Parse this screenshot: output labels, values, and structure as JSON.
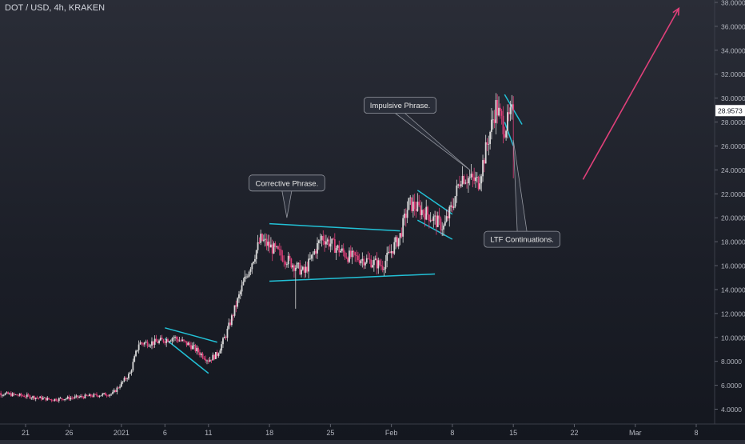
{
  "header": {
    "symbol": "DOT / USD, 4h, KRAKEN"
  },
  "colors": {
    "bull": "#d9d9d9",
    "bear": "#e0407a",
    "trendline": "#22c1d6",
    "arrow": "#e0407a",
    "price_tag_bg": "#ffffff",
    "price_tag_text": "#131722",
    "axis_text": "#b2b5be",
    "callout_bg": "#2a2e39",
    "callout_border": "#9598a1",
    "callout_text": "#e6e6e6"
  },
  "chart_data": {
    "type": "candlestick",
    "title": "DOT / USD, 4h, KRAKEN",
    "y_axis": {
      "ticks": [
        "4.0000",
        "6.0000",
        "8.0000",
        "10.0000",
        "12.0000",
        "14.0000",
        "16.0000",
        "18.0000",
        "20.0000",
        "22.0000",
        "24.0000",
        "26.0000",
        "28.0000",
        "30.0000",
        "32.0000",
        "34.0000",
        "36.0000",
        "38.0000"
      ],
      "ylim": [
        3.0,
        38.2
      ],
      "last_price": "28.9573",
      "last_price_value": 28.9573
    },
    "x_axis": {
      "ticks": [
        "21",
        "26",
        "2021",
        "6",
        "11",
        "18",
        "25",
        "Feb",
        "8",
        "15",
        "22",
        "Mar",
        "8"
      ],
      "tick_dates": [
        "2020-12-21",
        "2020-12-26",
        "2021-01-01",
        "2021-01-06",
        "2021-01-11",
        "2021-01-18",
        "2021-01-25",
        "2021-02-01",
        "2021-02-08",
        "2021-02-15",
        "2021-02-22",
        "2021-03-01",
        "2021-03-08"
      ]
    },
    "price_path": [
      [
        "2020-12-17",
        5.4
      ],
      [
        "2020-12-21",
        5.1
      ],
      [
        "2020-12-24",
        4.8
      ],
      [
        "2020-12-27",
        5.0
      ],
      [
        "2020-12-31",
        5.3
      ],
      [
        "2021-01-02",
        7.0
      ],
      [
        "2021-01-03",
        9.5
      ],
      [
        "2021-01-05",
        9.6
      ],
      [
        "2021-01-07",
        10.0
      ],
      [
        "2021-01-09",
        9.3
      ],
      [
        "2021-01-11",
        8.1
      ],
      [
        "2021-01-12",
        8.6
      ],
      [
        "2021-01-13",
        10.2
      ],
      [
        "2021-01-15",
        14.5
      ],
      [
        "2021-01-17",
        18.2
      ],
      [
        "2021-01-20",
        16.5
      ],
      [
        "2021-01-22",
        15.4
      ],
      [
        "2021-01-24",
        18.4
      ],
      [
        "2021-01-27",
        16.8
      ],
      [
        "2021-01-29",
        16.5
      ],
      [
        "2021-01-31",
        16.0
      ],
      [
        "2021-02-02",
        18.5
      ],
      [
        "2021-02-03",
        21.2
      ],
      [
        "2021-02-05",
        20.4
      ],
      [
        "2021-02-07",
        19.2
      ],
      [
        "2021-02-08",
        21.0
      ],
      [
        "2021-02-09",
        23.5
      ],
      [
        "2021-02-11",
        23.0
      ],
      [
        "2021-02-13",
        29.3
      ],
      [
        "2021-02-14",
        27.5
      ],
      [
        "2021-02-15",
        28.96
      ]
    ],
    "wicks": [
      {
        "date": "2021-01-21",
        "low": 12.4
      },
      {
        "date": "2021-02-15",
        "low": 23.3
      }
    ],
    "trendlines": [
      {
        "name": "december-flag-upper",
        "from": [
          "2021-01-06",
          10.8
        ],
        "to": [
          "2021-01-12",
          9.6
        ]
      },
      {
        "name": "december-flag-lower",
        "from": [
          "2021-01-06",
          9.9
        ],
        "to": [
          "2021-01-11",
          7.0
        ]
      },
      {
        "name": "corrective-range-upper",
        "from": [
          "2021-01-18",
          19.5
        ],
        "to": [
          "2021-02-02",
          18.9
        ]
      },
      {
        "name": "corrective-range-lower",
        "from": [
          "2021-01-18",
          14.7
        ],
        "to": [
          "2021-02-06",
          15.3
        ]
      },
      {
        "name": "february-flag-upper",
        "from": [
          "2021-02-04",
          22.3
        ],
        "to": [
          "2021-02-08",
          20.3
        ]
      },
      {
        "name": "february-flag-lower",
        "from": [
          "2021-02-04",
          19.8
        ],
        "to": [
          "2021-02-08",
          18.2
        ]
      },
      {
        "name": "ltf-flag-upper",
        "from": [
          "2021-02-14",
          30.3
        ],
        "to": [
          "2021-02-16",
          27.8
        ]
      },
      {
        "name": "ltf-flag-lower",
        "from": [
          "2021-02-14",
          28.0
        ],
        "to": [
          "2021-02-15",
          26.0
        ]
      }
    ],
    "projection_arrow": {
      "from": [
        "2021-02-23",
        23.2
      ],
      "to": [
        "2021-03-06",
        37.5
      ]
    },
    "annotations": [
      {
        "name": "corrective-phrase",
        "text": "Corrective Phrase.",
        "anchor": [
          "2021-01-20",
          22.9
        ],
        "pointer": [
          "2021-01-20",
          20.0
        ]
      },
      {
        "name": "impulsive-phrase",
        "text": "Impulsive Phrase.",
        "anchor": [
          "2021-02-02",
          29.4
        ],
        "pointer": [
          "2021-02-10",
          24.0
        ]
      },
      {
        "name": "ltf-continuations",
        "text": "LTF Continuations.",
        "anchor": [
          "2021-02-16",
          18.2
        ],
        "pointer": [
          "2021-02-15",
          26.5
        ]
      }
    ]
  }
}
